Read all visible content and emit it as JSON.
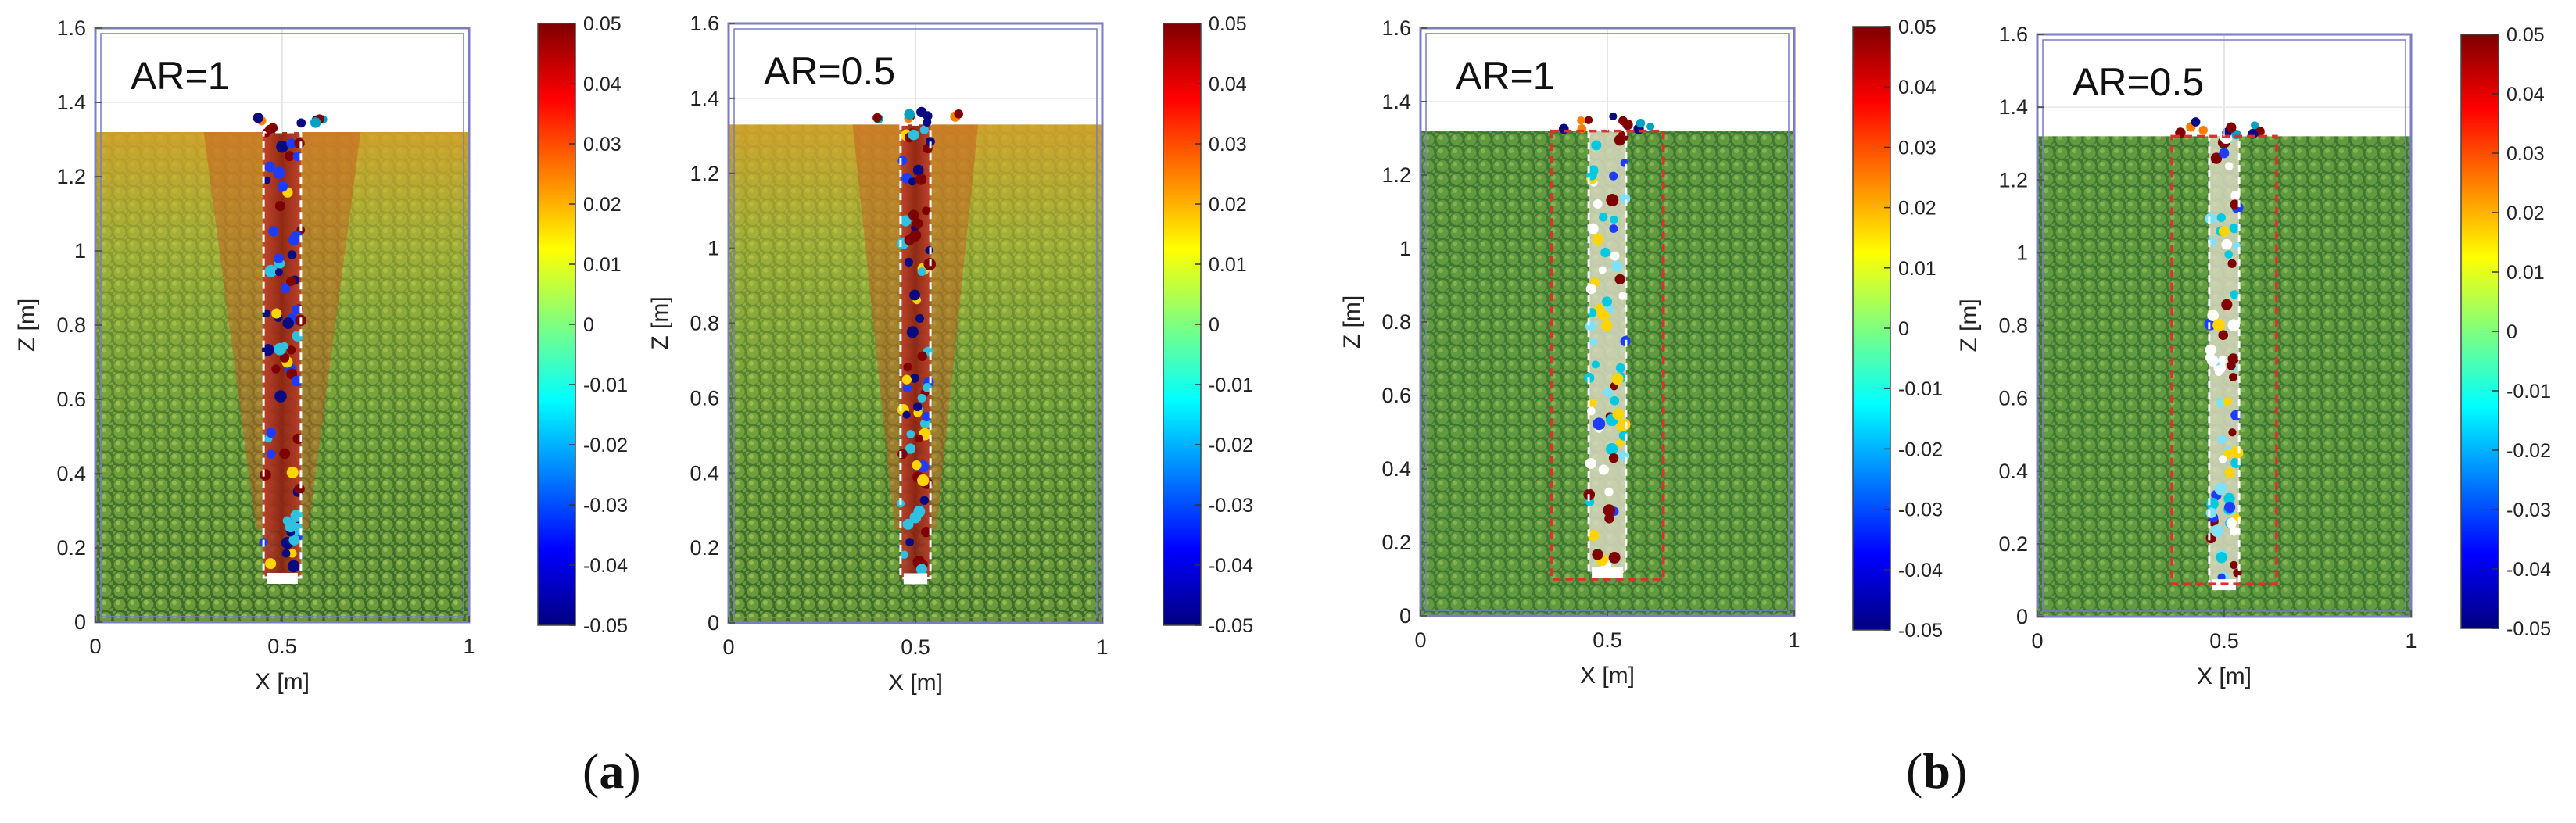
{
  "figure": {
    "captions": [
      {
        "open": "(",
        "letter": "a",
        "close": ")"
      },
      {
        "open": "(",
        "letter": "b",
        "close": ")"
      }
    ],
    "colormap": [
      "#00007f",
      "#0000ff",
      "#007fff",
      "#00ffff",
      "#7fff7f",
      "#ffff00",
      "#ff7f00",
      "#ff0000",
      "#7f0000"
    ],
    "colors": {
      "frame": "#7b7bc6",
      "ground_dark": "#3c6b2b",
      "ground_mid": "#6a9a3b",
      "column_outline": "#ffffff",
      "influence_box": "#e0302a",
      "sky": "#ffffff"
    }
  },
  "chart_data": [
    {
      "type": "heatmap",
      "group": "a",
      "label": "AR=1",
      "xlabel": "X [m]",
      "ylabel": "Z [m]",
      "xlim": [
        0,
        1
      ],
      "ylim": [
        0,
        1.6
      ],
      "xticks": [
        0,
        0.5,
        1
      ],
      "xtick_labels": [
        "0",
        "0.5",
        "1"
      ],
      "yticks": [
        0,
        0.2,
        0.4,
        0.6,
        0.8,
        1.0,
        1.2,
        1.4,
        1.6
      ],
      "ytick_labels": [
        "0",
        "0.2",
        "0.4",
        "0.6",
        "0.8",
        "1",
        "1.2",
        "1.4",
        "1.6"
      ],
      "soil_surface_z": 1.32,
      "column": {
        "x_min": 0.45,
        "x_max": 0.55,
        "z_bottom": 0.12
      },
      "influence_box": null,
      "field_mode": "gradient",
      "colorbar": {
        "min": -0.05,
        "max": 0.05,
        "tick_labels": [
          "0.05",
          "0.04",
          "0.03",
          "0.02",
          "0.01",
          "0",
          "-0.01",
          "-0.02",
          "-0.03",
          "-0.04",
          "-0.05"
        ]
      }
    },
    {
      "type": "heatmap",
      "group": "a",
      "label": "AR=0.5",
      "xlabel": "X [m]",
      "ylabel": "Z [m]",
      "xlim": [
        0,
        1
      ],
      "ylim": [
        0,
        1.6
      ],
      "xticks": [
        0,
        0.5,
        1
      ],
      "xtick_labels": [
        "0",
        "0.5",
        "1"
      ],
      "yticks": [
        0,
        0.2,
        0.4,
        0.6,
        0.8,
        1.0,
        1.2,
        1.4,
        1.6
      ],
      "ytick_labels": [
        "0",
        "0.2",
        "0.4",
        "0.6",
        "0.8",
        "1",
        "1.2",
        "1.4",
        "1.6"
      ],
      "soil_surface_z": 1.33,
      "column": {
        "x_min": 0.46,
        "x_max": 0.54,
        "z_bottom": 0.12
      },
      "influence_box": null,
      "field_mode": "gradient",
      "colorbar": {
        "min": -0.05,
        "max": 0.05,
        "tick_labels": [
          "0.05",
          "0.04",
          "0.03",
          "0.02",
          "0.01",
          "0",
          "-0.01",
          "-0.02",
          "-0.03",
          "-0.04",
          "-0.05"
        ]
      }
    },
    {
      "type": "heatmap",
      "group": "b",
      "label": "AR=1",
      "xlabel": "X [m]",
      "ylabel": "Z [m]",
      "xlim": [
        0,
        1
      ],
      "ylim": [
        0,
        1.6
      ],
      "xticks": [
        0,
        0.5,
        1
      ],
      "xtick_labels": [
        "0",
        "0.5",
        "1"
      ],
      "yticks": [
        0,
        0.2,
        0.4,
        0.6,
        0.8,
        1.0,
        1.2,
        1.4,
        1.6
      ],
      "ytick_labels": [
        "0",
        "0.2",
        "0.4",
        "0.6",
        "0.8",
        "1",
        "1.2",
        "1.4",
        "1.6"
      ],
      "soil_surface_z": 1.32,
      "column": {
        "x_min": 0.45,
        "x_max": 0.55,
        "z_bottom": 0.12
      },
      "influence_box": {
        "x_min": 0.35,
        "x_max": 0.65,
        "z_min": 0.1,
        "z_max": 1.32
      },
      "field_mode": "uniform",
      "colorbar": {
        "min": -0.05,
        "max": 0.05,
        "tick_labels": [
          "0.05",
          "0.04",
          "0.03",
          "0.02",
          "0.01",
          "0",
          "-0.01",
          "-0.02",
          "-0.03",
          "-0.04",
          "-0.05"
        ]
      }
    },
    {
      "type": "heatmap",
      "group": "b",
      "label": "AR=0.5",
      "xlabel": "X [m]",
      "ylabel": "Z [m]",
      "xlim": [
        0,
        1
      ],
      "ylim": [
        0,
        1.6
      ],
      "xticks": [
        0,
        0.5,
        1
      ],
      "xtick_labels": [
        "0",
        "0.5",
        "1"
      ],
      "yticks": [
        0,
        0.2,
        0.4,
        0.6,
        0.8,
        1.0,
        1.2,
        1.4,
        1.6
      ],
      "ytick_labels": [
        "0",
        "0.2",
        "0.4",
        "0.6",
        "0.8",
        "1",
        "1.2",
        "1.4",
        "1.6"
      ],
      "soil_surface_z": 1.32,
      "column": {
        "x_min": 0.46,
        "x_max": 0.54,
        "z_bottom": 0.09
      },
      "influence_box": {
        "x_min": 0.36,
        "x_max": 0.64,
        "z_min": 0.09,
        "z_max": 1.32
      },
      "field_mode": "uniform",
      "colorbar": {
        "min": -0.05,
        "max": 0.05,
        "tick_labels": [
          "0.05",
          "0.04",
          "0.03",
          "0.02",
          "0.01",
          "0",
          "-0.01",
          "-0.02",
          "-0.03",
          "-0.04",
          "-0.05"
        ]
      }
    }
  ]
}
